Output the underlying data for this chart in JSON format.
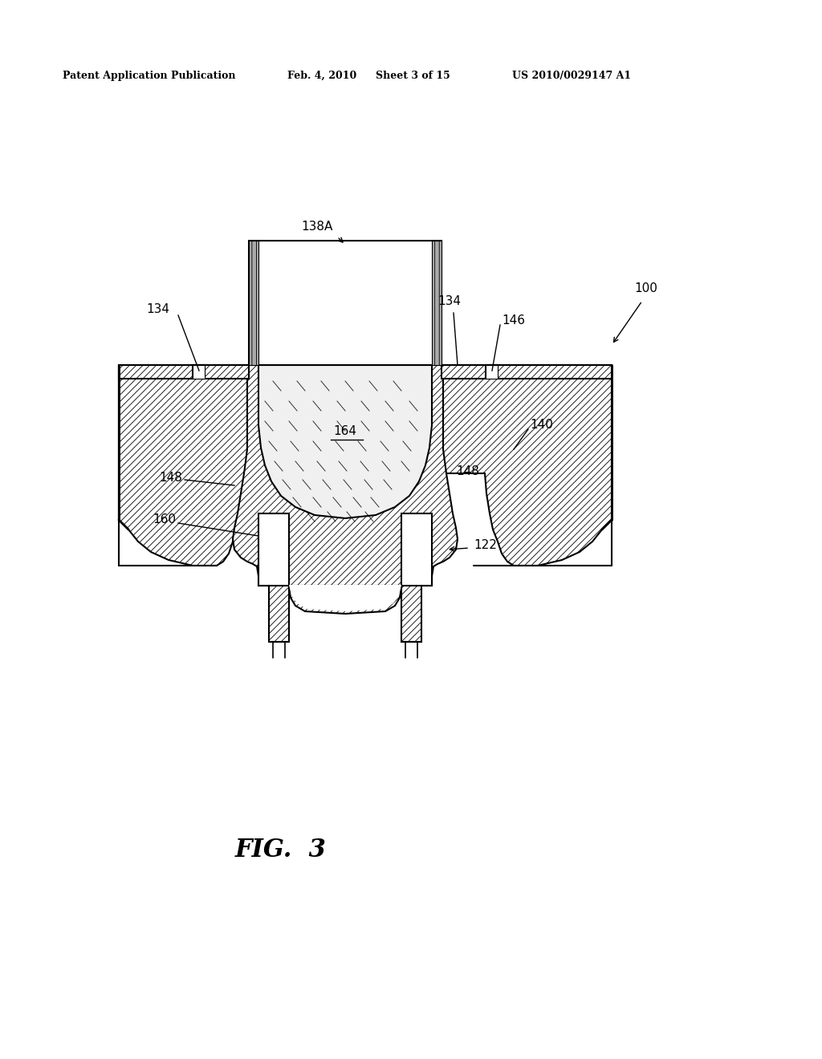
{
  "bg_color": "#ffffff",
  "line_color": "#000000",
  "header_text": "Patent Application Publication",
  "header_date": "Feb. 4, 2010",
  "header_sheet": "Sheet 3 of 15",
  "header_patent": "US 2010/0029147 A1",
  "figure_label": "FIG.  3",
  "lw_main": 1.5,
  "lw_thick": 2.0,
  "hatch_dense": "////",
  "label_fs": 11
}
